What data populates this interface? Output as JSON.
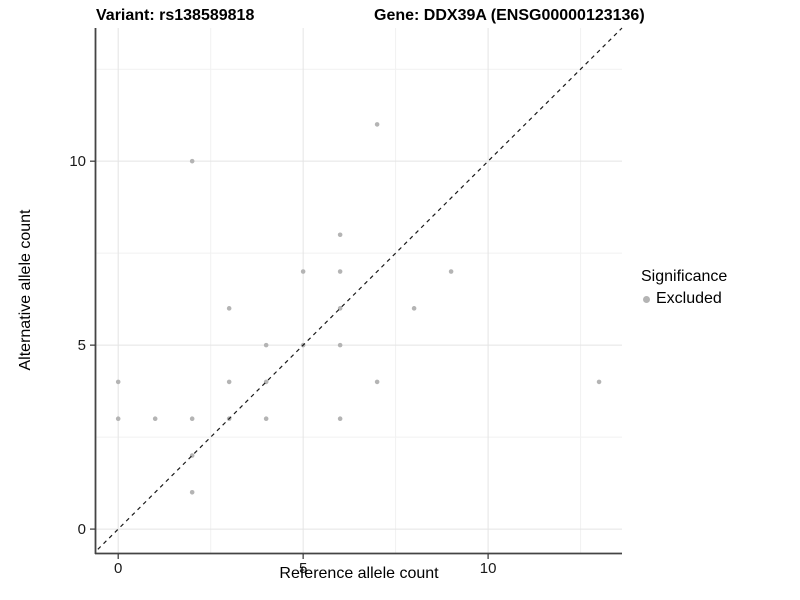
{
  "header": {
    "variant_title": "Variant: rs138589818",
    "gene_title": "Gene: DDX39A (ENSG00000123136)"
  },
  "legend": {
    "title": "Significance",
    "items": [
      {
        "label": "Excluded",
        "color": "#b4b4b4"
      }
    ]
  },
  "colors": {
    "point": "#b4b4b4",
    "gridline_major": "#e4e4e4",
    "gridline_minor": "#f1f1f1",
    "axis_line": "#444444",
    "tick_mark": "#333333",
    "identity_line": "#1a1a1a",
    "background": "#ffffff"
  },
  "chart_data": {
    "type": "scatter",
    "xlabel": "Reference allele count",
    "ylabel": "Alternative allele count",
    "xlim": [
      -0.6,
      13.62
    ],
    "ylim": [
      -0.65,
      13.62
    ],
    "x_major_ticks": [
      0,
      5,
      10
    ],
    "y_major_ticks": [
      0,
      5,
      10
    ],
    "x_minor_gridlines": [
      2.5,
      7.5,
      12.5
    ],
    "y_minor_gridlines": [
      2.5,
      7.5,
      12.5
    ],
    "grid": true,
    "legend_position": "right",
    "identity_line": {
      "equation": "y = x",
      "style": "dashed"
    },
    "series": [
      {
        "name": "Excluded",
        "color": "#b4b4b4",
        "points": [
          [
            0,
            3
          ],
          [
            0,
            4
          ],
          [
            1,
            3
          ],
          [
            2,
            1
          ],
          [
            2,
            2
          ],
          [
            2,
            3
          ],
          [
            2,
            10
          ],
          [
            3,
            3
          ],
          [
            3,
            4
          ],
          [
            3,
            6
          ],
          [
            4,
            3
          ],
          [
            4,
            4
          ],
          [
            4,
            5
          ],
          [
            5,
            5
          ],
          [
            5,
            7
          ],
          [
            6,
            3
          ],
          [
            6,
            5
          ],
          [
            6,
            6
          ],
          [
            6,
            7
          ],
          [
            6,
            8
          ],
          [
            7,
            4
          ],
          [
            7,
            11
          ],
          [
            8,
            6
          ],
          [
            9,
            7
          ],
          [
            13,
            4
          ]
        ]
      }
    ]
  }
}
